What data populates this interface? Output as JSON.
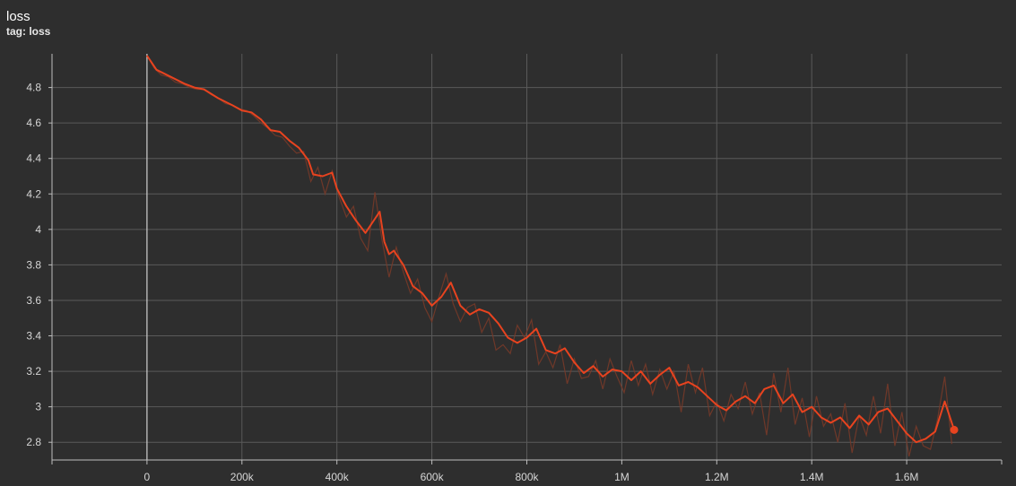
{
  "card": {
    "title": "loss",
    "subtitle": "tag: loss"
  },
  "colors": {
    "background": "#2e2e2e",
    "grid": "#5a5a5a",
    "axis": "#bdbdbd",
    "series_smoothed": "#e8431f",
    "series_raw": "#7a3a28"
  },
  "chart_data": {
    "type": "line",
    "title": "loss",
    "xlabel": "",
    "ylabel": "",
    "xlim": [
      -200000,
      1800000
    ],
    "ylim": [
      2.7,
      4.99
    ],
    "grid": true,
    "x_ticks": [
      0,
      200000,
      400000,
      600000,
      800000,
      1000000,
      1200000,
      1400000,
      1600000
    ],
    "x_tick_labels": [
      "0",
      "200k",
      "400k",
      "600k",
      "800k",
      "1M",
      "1.2M",
      "1.4M",
      "1.6M"
    ],
    "y_ticks": [
      2.8,
      3,
      3.2,
      3.4,
      3.6,
      3.8,
      4,
      4.2,
      4.4,
      4.6,
      4.8
    ],
    "y_tick_labels": [
      "2.8",
      "3",
      "3.2",
      "3.4",
      "3.6",
      "3.8",
      "4",
      "4.2",
      "4.4",
      "4.6",
      "4.8"
    ],
    "series": [
      {
        "style": "smoothed",
        "x": [
          0,
          20000,
          50000,
          80000,
          100000,
          120000,
          150000,
          180000,
          200000,
          220000,
          240000,
          260000,
          280000,
          300000,
          320000,
          340000,
          350000,
          370000,
          390000,
          400000,
          420000,
          440000,
          460000,
          480000,
          490000,
          500000,
          510000,
          520000,
          540000,
          560000,
          580000,
          600000,
          620000,
          640000,
          660000,
          680000,
          700000,
          720000,
          740000,
          760000,
          780000,
          800000,
          820000,
          840000,
          860000,
          880000,
          900000,
          920000,
          940000,
          960000,
          980000,
          1000000,
          1020000,
          1040000,
          1060000,
          1080000,
          1100000,
          1120000,
          1140000,
          1160000,
          1180000,
          1200000,
          1220000,
          1240000,
          1260000,
          1280000,
          1300000,
          1320000,
          1340000,
          1360000,
          1380000,
          1400000,
          1420000,
          1440000,
          1460000,
          1480000,
          1500000,
          1520000,
          1540000,
          1560000,
          1580000,
          1600000,
          1620000,
          1640000,
          1660000,
          1680000,
          1700000
        ],
        "y": [
          4.98,
          4.9,
          4.86,
          4.82,
          4.8,
          4.79,
          4.74,
          4.7,
          4.67,
          4.66,
          4.62,
          4.56,
          4.55,
          4.5,
          4.46,
          4.39,
          4.31,
          4.3,
          4.32,
          4.23,
          4.13,
          4.05,
          3.98,
          4.06,
          4.1,
          3.93,
          3.86,
          3.88,
          3.8,
          3.68,
          3.64,
          3.57,
          3.62,
          3.7,
          3.57,
          3.52,
          3.55,
          3.53,
          3.47,
          3.39,
          3.36,
          3.39,
          3.44,
          3.32,
          3.3,
          3.33,
          3.25,
          3.19,
          3.23,
          3.17,
          3.21,
          3.2,
          3.15,
          3.2,
          3.13,
          3.18,
          3.22,
          3.12,
          3.14,
          3.11,
          3.06,
          3.01,
          2.98,
          3.03,
          3.06,
          3.02,
          3.1,
          3.12,
          3.02,
          3.07,
          2.97,
          3.0,
          2.94,
          2.91,
          2.94,
          2.88,
          2.95,
          2.9,
          2.97,
          2.99,
          2.92,
          2.85,
          2.8,
          2.82,
          2.86,
          3.03,
          2.87
        ]
      },
      {
        "style": "raw",
        "x": [
          0,
          15000,
          30000,
          45000,
          60000,
          75000,
          90000,
          105000,
          120000,
          135000,
          150000,
          165000,
          180000,
          195000,
          210000,
          225000,
          240000,
          255000,
          270000,
          285000,
          300000,
          315000,
          330000,
          345000,
          360000,
          375000,
          390000,
          405000,
          420000,
          435000,
          450000,
          465000,
          480000,
          495000,
          510000,
          525000,
          540000,
          555000,
          570000,
          585000,
          600000,
          615000,
          630000,
          645000,
          660000,
          675000,
          690000,
          705000,
          720000,
          735000,
          750000,
          765000,
          780000,
          795000,
          810000,
          825000,
          840000,
          855000,
          870000,
          885000,
          900000,
          915000,
          930000,
          945000,
          960000,
          975000,
          990000,
          1005000,
          1020000,
          1035000,
          1050000,
          1065000,
          1080000,
          1095000,
          1110000,
          1125000,
          1140000,
          1155000,
          1170000,
          1185000,
          1200000,
          1215000,
          1230000,
          1245000,
          1260000,
          1275000,
          1290000,
          1305000,
          1320000,
          1335000,
          1350000,
          1365000,
          1380000,
          1395000,
          1410000,
          1425000,
          1440000,
          1455000,
          1470000,
          1485000,
          1500000,
          1515000,
          1530000,
          1545000,
          1560000,
          1575000,
          1590000,
          1605000,
          1620000,
          1635000,
          1650000,
          1665000,
          1680000,
          1695000
        ],
        "y": [
          4.98,
          4.91,
          4.87,
          4.86,
          4.83,
          4.82,
          4.8,
          4.79,
          4.79,
          4.76,
          4.74,
          4.71,
          4.7,
          4.68,
          4.67,
          4.64,
          4.6,
          4.57,
          4.53,
          4.52,
          4.47,
          4.43,
          4.44,
          4.27,
          4.35,
          4.2,
          4.33,
          4.18,
          4.07,
          4.13,
          3.95,
          3.88,
          4.21,
          3.94,
          3.73,
          3.9,
          3.76,
          3.64,
          3.72,
          3.56,
          3.48,
          3.62,
          3.75,
          3.58,
          3.48,
          3.56,
          3.58,
          3.42,
          3.5,
          3.32,
          3.35,
          3.3,
          3.46,
          3.39,
          3.49,
          3.24,
          3.31,
          3.22,
          3.35,
          3.13,
          3.27,
          3.16,
          3.17,
          3.26,
          3.1,
          3.27,
          3.17,
          3.08,
          3.26,
          3.12,
          3.24,
          3.07,
          3.21,
          3.1,
          3.2,
          2.97,
          3.24,
          3.08,
          3.22,
          2.95,
          3.03,
          2.92,
          3.07,
          2.99,
          3.14,
          2.96,
          3.08,
          2.84,
          3.19,
          2.97,
          3.22,
          2.9,
          3.05,
          2.83,
          3.06,
          2.89,
          2.96,
          2.8,
          3.02,
          2.74,
          2.95,
          2.84,
          3.06,
          2.85,
          3.13,
          2.78,
          2.97,
          2.72,
          2.89,
          2.78,
          2.76,
          2.93,
          3.17,
          2.79
        ]
      }
    ]
  }
}
